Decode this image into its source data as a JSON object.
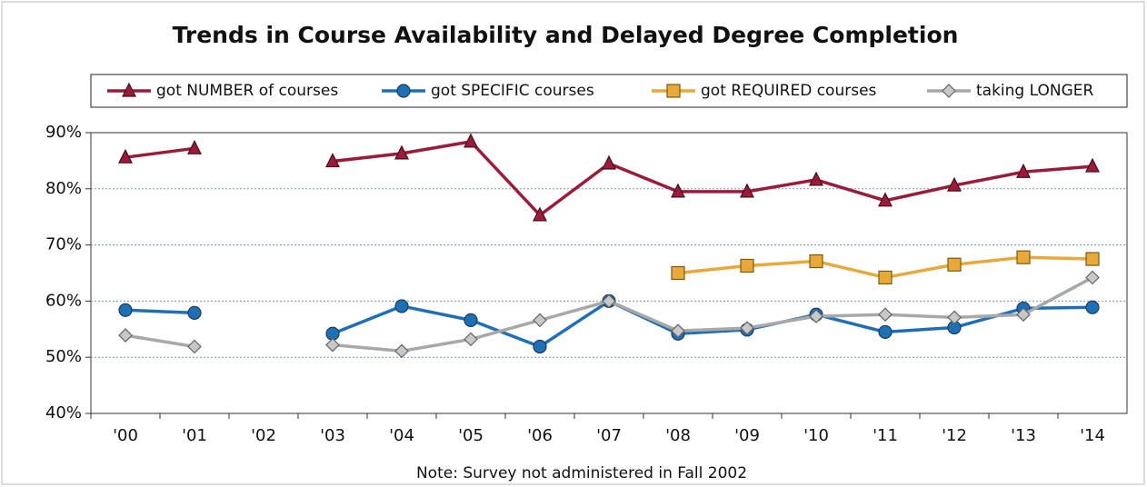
{
  "chart_data": {
    "type": "line",
    "title": "Trends in Course Availability and Delayed Degree Completion",
    "note": "Note: Survey not administered in Fall 2002",
    "categories": [
      "'00",
      "'01",
      "'02",
      "'03",
      "'04",
      "'05",
      "'06",
      "'07",
      "'08",
      "'09",
      "'10",
      "'11",
      "'12",
      "'13",
      "'14"
    ],
    "series": [
      {
        "name": "got NUMBER of courses",
        "color": "#9b1b3b",
        "marker": "triangle",
        "values": [
          85.6,
          87.2,
          null,
          84.9,
          86.3,
          88.4,
          75.3,
          84.5,
          79.5,
          79.5,
          81.6,
          77.9,
          80.6,
          83.0,
          84.0
        ]
      },
      {
        "name": "got SPECIFIC courses",
        "color": "#1f6fb5",
        "marker": "circle",
        "values": [
          58.4,
          57.9,
          null,
          54.2,
          59.1,
          56.6,
          51.9,
          60.0,
          54.2,
          54.9,
          57.6,
          54.5,
          55.3,
          58.7,
          58.9
        ]
      },
      {
        "name": "got REQUIRED courses",
        "color": "#e8a93b",
        "marker": "square",
        "values": [
          null,
          null,
          null,
          null,
          null,
          null,
          null,
          null,
          65.0,
          66.3,
          67.1,
          64.2,
          66.5,
          67.8,
          67.5
        ]
      },
      {
        "name": "taking LONGER",
        "color": "#a8a8a8",
        "marker": "diamond",
        "values": [
          53.9,
          51.9,
          null,
          52.2,
          51.1,
          53.2,
          56.6,
          60.0,
          54.7,
          55.2,
          57.3,
          57.6,
          57.1,
          57.6,
          64.2
        ]
      }
    ],
    "ylim": [
      40,
      90
    ],
    "yticks": [
      {
        "value": 40,
        "label": "40%"
      },
      {
        "value": 50,
        "label": "50%"
      },
      {
        "value": 60,
        "label": "60%"
      },
      {
        "value": 70,
        "label": "70%"
      },
      {
        "value": 80,
        "label": "80%"
      },
      {
        "value": 90,
        "label": "90%"
      }
    ],
    "grid": true,
    "legend": "top"
  }
}
